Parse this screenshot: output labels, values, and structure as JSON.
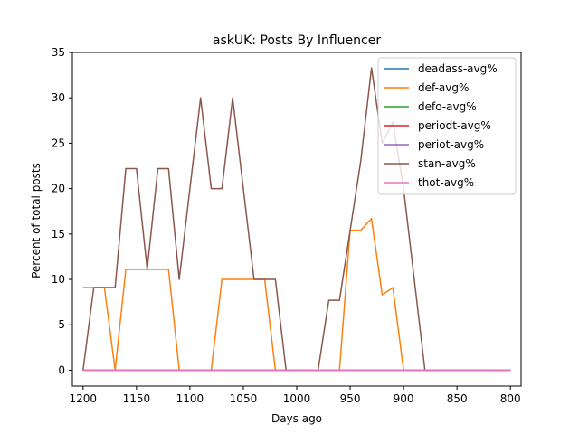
{
  "chart_data": {
    "type": "line",
    "title": "askUK: Posts By Influencer",
    "xlabel": "Days ago",
    "ylabel": "Percent of total posts",
    "xlim": [
      1210,
      790
    ],
    "ylim": [
      -1.75,
      35
    ],
    "xticks": [
      1200,
      1150,
      1100,
      1050,
      1000,
      950,
      900,
      850,
      800
    ],
    "xtick_labels": [
      "1200",
      "1150",
      "1100",
      "1050",
      "1000",
      "950",
      "900",
      "850",
      "800"
    ],
    "yticks": [
      0,
      5,
      10,
      15,
      20,
      25,
      30,
      35
    ],
    "ytick_labels": [
      "0",
      "5",
      "10",
      "15",
      "20",
      "25",
      "30",
      "35"
    ],
    "x_inverted": true,
    "grid": false,
    "legend_position": "top-right",
    "series": [
      {
        "name": "deadass-avg%",
        "color": "#1f77b4",
        "x": [
          1200,
          800
        ],
        "y": [
          0,
          0
        ]
      },
      {
        "name": "def-avg%",
        "color": "#ff7f0e",
        "x": [
          1200,
          1190,
          1180,
          1170,
          1160,
          1150,
          1140,
          1130,
          1120,
          1110,
          1100,
          1090,
          1080,
          1070,
          1060,
          1050,
          1040,
          1030,
          1020,
          1010,
          1000,
          990,
          980,
          970,
          960,
          950,
          940,
          930,
          920,
          910,
          900,
          890,
          880,
          870,
          860,
          850,
          840,
          830,
          820,
          810,
          800
        ],
        "y": [
          9.1,
          9.1,
          9.1,
          0,
          11.1,
          11.1,
          11.1,
          11.1,
          11.1,
          0,
          0,
          0,
          0,
          10,
          10,
          10,
          10,
          10,
          0,
          0,
          0,
          0,
          0,
          0,
          0,
          15.4,
          15.4,
          16.7,
          8.3,
          9.1,
          0,
          0,
          0,
          0,
          0,
          0,
          0,
          0,
          0,
          0,
          0
        ]
      },
      {
        "name": "defo-avg%",
        "color": "#2ca02c",
        "x": [
          1200,
          800
        ],
        "y": [
          0,
          0
        ]
      },
      {
        "name": "periodt-avg%",
        "color": "#d62728",
        "x": [
          1200,
          800
        ],
        "y": [
          0,
          0
        ]
      },
      {
        "name": "periot-avg%",
        "color": "#9467bd",
        "x": [
          1200,
          800
        ],
        "y": [
          0,
          0
        ]
      },
      {
        "name": "stan-avg%",
        "color": "#8c564b",
        "x": [
          1200,
          1190,
          1180,
          1170,
          1160,
          1150,
          1140,
          1130,
          1120,
          1110,
          1100,
          1090,
          1080,
          1070,
          1060,
          1050,
          1040,
          1030,
          1020,
          1010,
          1000,
          990,
          980,
          970,
          960,
          950,
          940,
          930,
          920,
          910,
          900,
          890,
          880,
          870,
          860,
          850,
          840,
          830,
          820,
          810,
          800
        ],
        "y": [
          0,
          9.1,
          9.1,
          9.1,
          22.2,
          22.2,
          11.1,
          22.2,
          22.2,
          10,
          20,
          30,
          20,
          20,
          30,
          20,
          10,
          10,
          10,
          0,
          0,
          0,
          0,
          7.7,
          7.7,
          15.4,
          23.1,
          33.3,
          25,
          27.3,
          20,
          10,
          0,
          0,
          0,
          0,
          0,
          0,
          0,
          0,
          0
        ]
      },
      {
        "name": "thot-avg%",
        "color": "#e377c2",
        "x": [
          1200,
          800
        ],
        "y": [
          0,
          0
        ]
      }
    ]
  }
}
